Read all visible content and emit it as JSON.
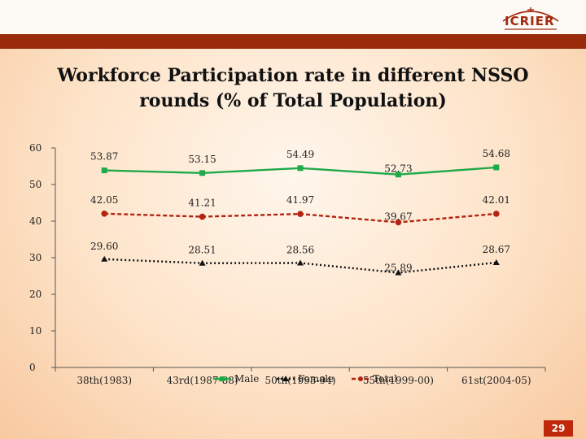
{
  "slide": {
    "logo_text": "ICRIER",
    "page_number": "29",
    "title_line1": "Workforce Participation rate in different NSSO",
    "title_line2": "rounds (% of Total Population)",
    "colors": {
      "header_rule": "#9a2a0a",
      "page_badge": "#c0280b"
    }
  },
  "chart_data": {
    "type": "line",
    "title": "Workforce Participation rate in different NSSO rounds (% of Total Population)",
    "categories": [
      "38th(1983)",
      "43rd(1987-88)",
      "50th(1993-94)",
      "55th(1999-00)",
      "61st(2004-05)"
    ],
    "ylim": [
      0,
      60
    ],
    "yticks": [
      0,
      10,
      20,
      30,
      40,
      50,
      60
    ],
    "grid": false,
    "legend_placement": "bottom",
    "series": [
      {
        "name": "Male",
        "values": [
          53.87,
          53.15,
          54.49,
          52.73,
          54.68
        ],
        "labels": [
          "53.87",
          "53.15",
          "54.49",
          "52.73",
          "54.68"
        ],
        "color": "#1faa4a",
        "marker": "square",
        "dash": "solid"
      },
      {
        "name": "Female",
        "values": [
          29.6,
          28.51,
          28.56,
          25.89,
          28.67
        ],
        "labels": [
          "29.60",
          "28.51",
          "28.56",
          "25.89",
          "28.67"
        ],
        "color": "#111111",
        "marker": "triangle",
        "dash": "dotted"
      },
      {
        "name": "Total",
        "values": [
          42.05,
          41.21,
          41.97,
          39.67,
          42.01
        ],
        "labels": [
          "42.05",
          "41.21",
          "41.97",
          "39.67",
          "42.01"
        ],
        "color": "#b32410",
        "marker": "circle",
        "dash": "dashed"
      }
    ]
  }
}
